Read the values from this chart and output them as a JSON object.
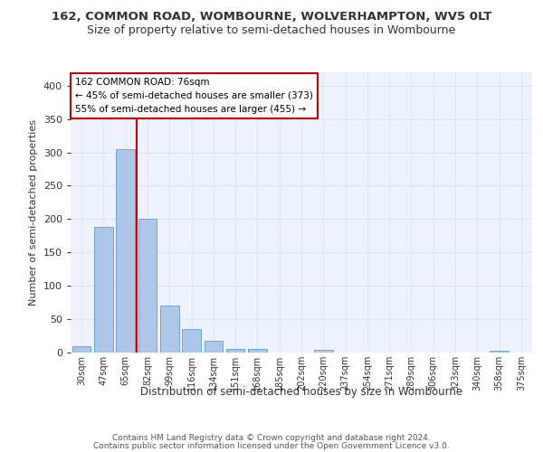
{
  "title1": "162, COMMON ROAD, WOMBOURNE, WOLVERHAMPTON, WV5 0LT",
  "title2": "Size of property relative to semi-detached houses in Wombourne",
  "xlabel": "Distribution of semi-detached houses by size in Wombourne",
  "ylabel": "Number of semi-detached properties",
  "footer1": "Contains HM Land Registry data © Crown copyright and database right 2024.",
  "footer2": "Contains public sector information licensed under the Open Government Licence v3.0.",
  "bin_labels": [
    "30sqm",
    "47sqm",
    "65sqm",
    "82sqm",
    "99sqm",
    "116sqm",
    "134sqm",
    "151sqm",
    "168sqm",
    "185sqm",
    "202sqm",
    "220sqm",
    "237sqm",
    "254sqm",
    "271sqm",
    "289sqm",
    "306sqm",
    "323sqm",
    "340sqm",
    "358sqm",
    "375sqm"
  ],
  "bar_values": [
    10,
    188,
    305,
    200,
    70,
    35,
    17,
    5,
    5,
    0,
    0,
    4,
    0,
    0,
    0,
    0,
    0,
    0,
    0,
    3,
    0
  ],
  "bar_color": "#aec6e8",
  "bar_edge_color": "#5a9fd4",
  "grid_color": "#dce6f5",
  "bg_color": "#eef3fb",
  "annotation_box_color": "#ffffff",
  "annotation_box_edge": "#cc0000",
  "red_line_x": 2.5,
  "property_label": "162 COMMON ROAD: 76sqm",
  "pct_smaller": "45% of semi-detached houses are smaller (373)",
  "pct_larger": "55% of semi-detached houses are larger (455)",
  "ylim": [
    0,
    420
  ],
  "yticks": [
    0,
    50,
    100,
    150,
    200,
    250,
    300,
    350,
    400
  ]
}
